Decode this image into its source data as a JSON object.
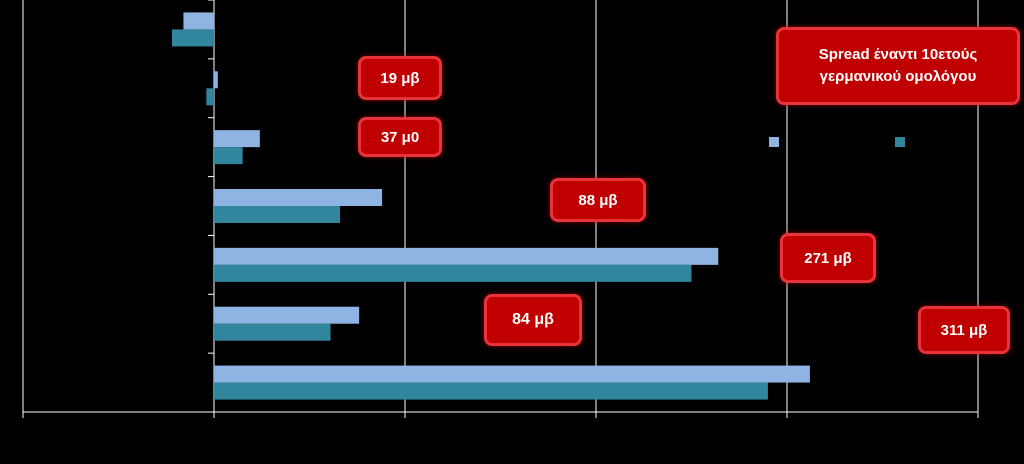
{
  "chart_data": {
    "type": "bar",
    "orientation": "horizontal",
    "categories": [
      "",
      "",
      "",
      "",
      "",
      "",
      ""
    ],
    "series": [
      {
        "name": "",
        "color": "#8eb4e3",
        "values": [
          -0.8,
          0.1,
          1.2,
          4.4,
          13.2,
          3.8,
          15.6
        ]
      },
      {
        "name": "",
        "color": "#31859c",
        "values": [
          -1.1,
          -0.2,
          0.75,
          3.3,
          12.5,
          3.05,
          14.5
        ]
      }
    ],
    "xlim": [
      -5,
      20
    ],
    "xticks": [
      -5,
      0,
      5,
      10,
      15,
      20
    ],
    "grid": true,
    "legend": "right",
    "annotations": [
      "19 μβ",
      "37 μ0",
      "88  μβ",
      "271  μβ",
      "84 μβ",
      "311 μβ"
    ],
    "title_box": "Spread έναντι 10ετούς γερμανικού ομολόγου"
  },
  "colors": {
    "background": "#000000",
    "grid": "#ffffff",
    "callout_fill": "#c00000",
    "callout_border": "#e8333a"
  }
}
